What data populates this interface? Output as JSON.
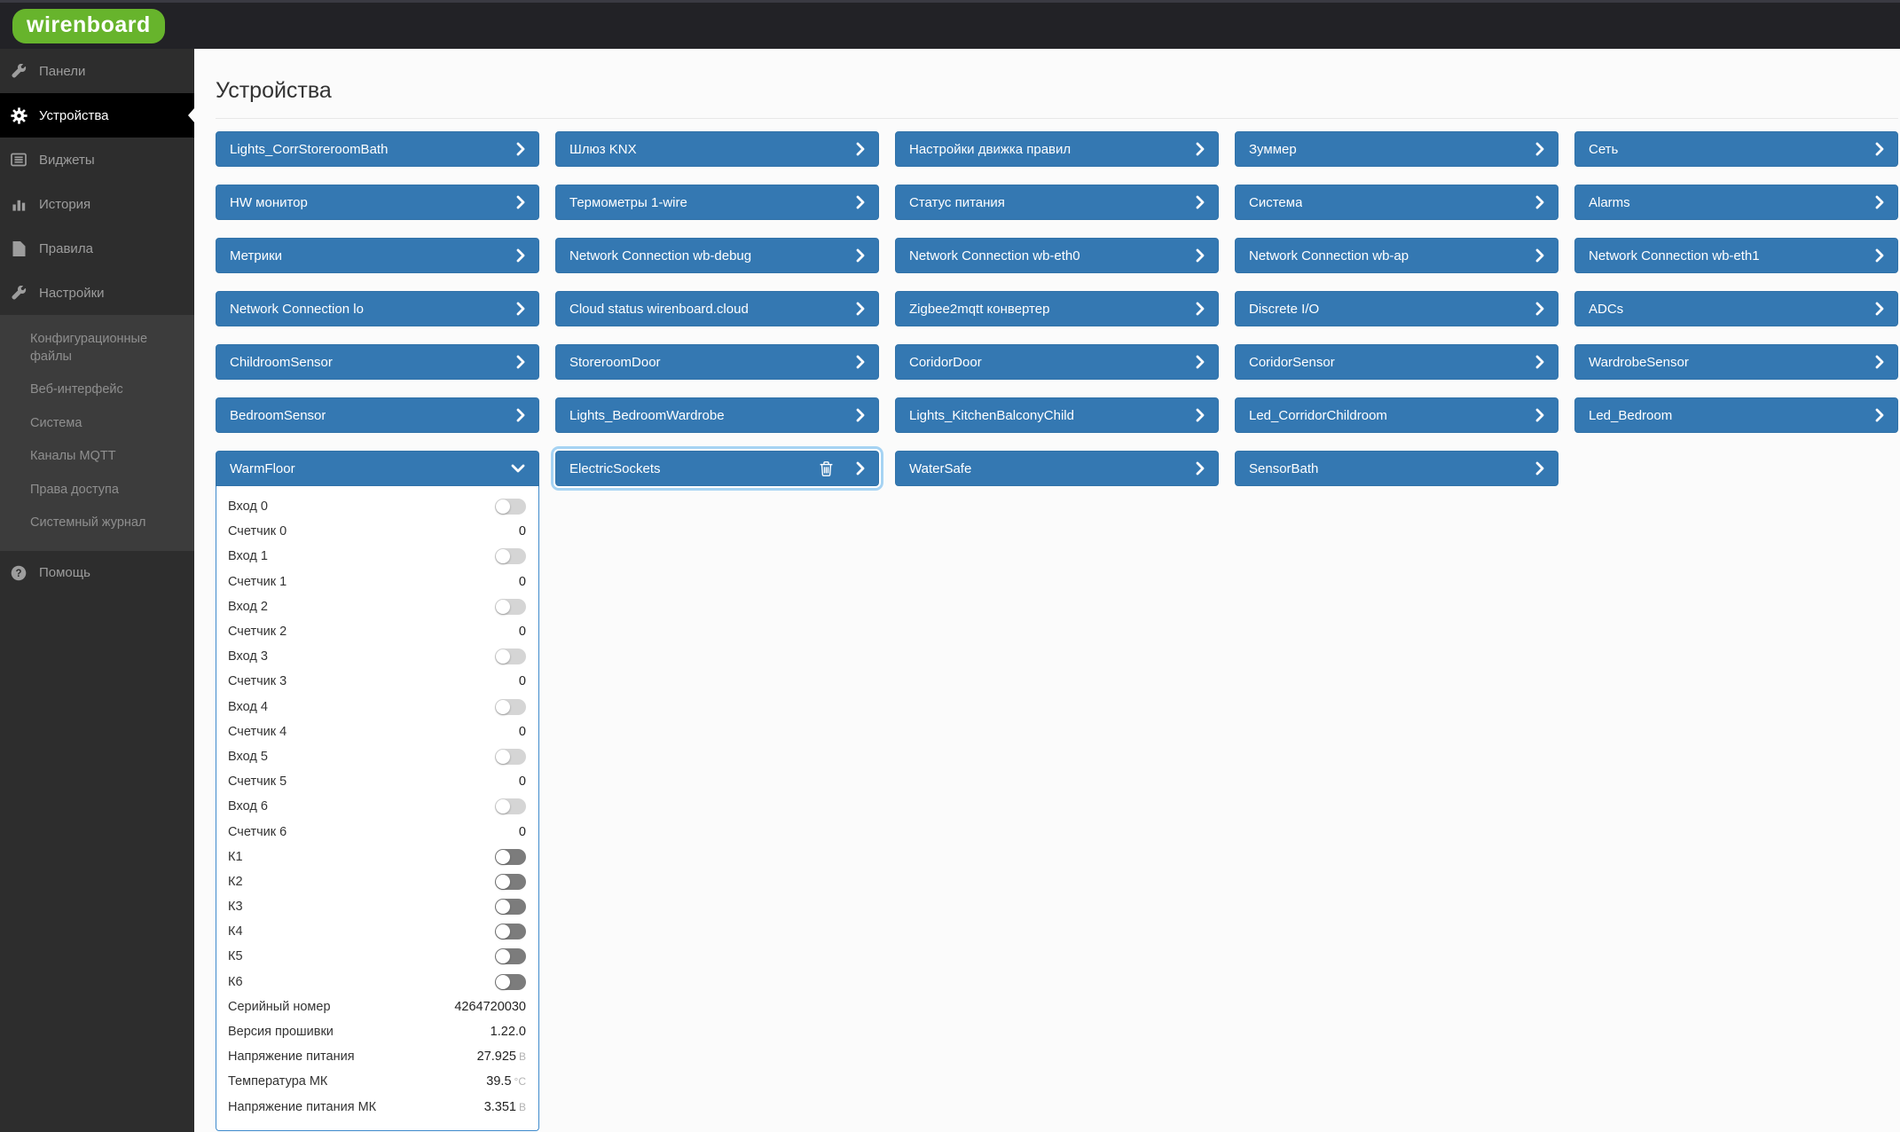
{
  "logo": {
    "text": "wirenboard",
    "color": "#67b42c"
  },
  "sidebar": {
    "items": [
      {
        "label": "Панели",
        "icon": "wrench-icon",
        "active": false
      },
      {
        "label": "Устройства",
        "icon": "gear-icon",
        "active": true
      },
      {
        "label": "Виджеты",
        "icon": "widgets-icon",
        "active": false
      },
      {
        "label": "История",
        "icon": "chart-icon",
        "active": false
      },
      {
        "label": "Правила",
        "icon": "file-icon",
        "active": false
      },
      {
        "label": "Настройки",
        "icon": "wrench-icon",
        "active": false,
        "children": [
          "Конфигурационные файлы",
          "Веб-интерфейс",
          "Система",
          "Каналы MQTT",
          "Права доступа",
          "Системный журнал"
        ]
      },
      {
        "label": "Помощь",
        "icon": "question-icon",
        "active": false
      }
    ]
  },
  "page": {
    "title": "Устройства"
  },
  "grid": {
    "tiles": [
      {
        "label": "Lights_CorrStoreroomBath"
      },
      {
        "label": "Шлюз KNX"
      },
      {
        "label": "Настройки движка правил"
      },
      {
        "label": "Зуммер"
      },
      {
        "label": "Сеть"
      },
      {
        "label": "HW монитор"
      },
      {
        "label": "Термометры 1-wire"
      },
      {
        "label": "Статус питания"
      },
      {
        "label": "Система"
      },
      {
        "label": "Alarms"
      },
      {
        "label": "Метрики"
      },
      {
        "label": "Network Connection wb-debug"
      },
      {
        "label": "Network Connection wb-eth0"
      },
      {
        "label": "Network Connection wb-ap"
      },
      {
        "label": "Network Connection wb-eth1"
      },
      {
        "label": "Network Connection lo"
      },
      {
        "label": "Cloud status wirenboard.cloud"
      },
      {
        "label": "Zigbee2mqtt конвертер"
      },
      {
        "label": "Discrete I/O"
      },
      {
        "label": "ADCs"
      },
      {
        "label": "ChildroomSensor"
      },
      {
        "label": "StoreroomDoor"
      },
      {
        "label": "CoridorDoor"
      },
      {
        "label": "CoridorSensor"
      },
      {
        "label": "WardrobeSensor"
      },
      {
        "label": "BedroomSensor"
      },
      {
        "label": "Lights_BedroomWardrobe"
      },
      {
        "label": "Lights_KitchenBalconyChild"
      },
      {
        "label": "Led_CorridorChildroom"
      },
      {
        "label": "Led_Bedroom"
      },
      {
        "label": "WarmFloor",
        "expanded": true
      },
      {
        "label": "ElectricSockets",
        "selected": true,
        "has_delete": true
      },
      {
        "label": "WaterSafe"
      },
      {
        "label": "SensorBath"
      }
    ]
  },
  "warmfloor_panel": {
    "rows": [
      {
        "label": "Вход 0",
        "control": "toggle-light",
        "state": "off"
      },
      {
        "label": "Счетчик 0",
        "value": "0"
      },
      {
        "label": "Вход 1",
        "control": "toggle-light",
        "state": "off"
      },
      {
        "label": "Счетчик 1",
        "value": "0"
      },
      {
        "label": "Вход 2",
        "control": "toggle-light",
        "state": "off"
      },
      {
        "label": "Счетчик 2",
        "value": "0"
      },
      {
        "label": "Вход 3",
        "control": "toggle-light",
        "state": "off"
      },
      {
        "label": "Счетчик 3",
        "value": "0"
      },
      {
        "label": "Вход 4",
        "control": "toggle-light",
        "state": "off"
      },
      {
        "label": "Счетчик 4",
        "value": "0"
      },
      {
        "label": "Вход 5",
        "control": "toggle-light",
        "state": "off"
      },
      {
        "label": "Счетчик 5",
        "value": "0"
      },
      {
        "label": "Вход 6",
        "control": "toggle-light",
        "state": "off"
      },
      {
        "label": "Счетчик 6",
        "value": "0"
      },
      {
        "label": "К1",
        "control": "toggle-dark",
        "state": "off"
      },
      {
        "label": "К2",
        "control": "toggle-dark",
        "state": "off"
      },
      {
        "label": "К3",
        "control": "toggle-dark",
        "state": "off"
      },
      {
        "label": "К4",
        "control": "toggle-dark",
        "state": "off"
      },
      {
        "label": "К5",
        "control": "toggle-dark",
        "state": "off"
      },
      {
        "label": "К6",
        "control": "toggle-dark",
        "state": "off"
      },
      {
        "label": "Серийный номер",
        "value": "4264720030"
      },
      {
        "label": "Версия прошивки",
        "value": "1.22.0"
      },
      {
        "label": "Напряжение питания",
        "value": "27.925",
        "unit": "В"
      },
      {
        "label": "Температура МК",
        "value": "39.5",
        "unit": "°C"
      },
      {
        "label": "Напряжение питания МК",
        "value": "3.351",
        "unit": "В"
      }
    ]
  },
  "colors": {
    "tile_blue": "#3478b2",
    "sidebar_bg": "#2d2d2d",
    "topbar_bg": "#222226",
    "active_item_bg": "#000000",
    "focus_ring": "#a6d3f3",
    "panel_border": "#3e8acc",
    "logo_green": "#67b42c"
  }
}
